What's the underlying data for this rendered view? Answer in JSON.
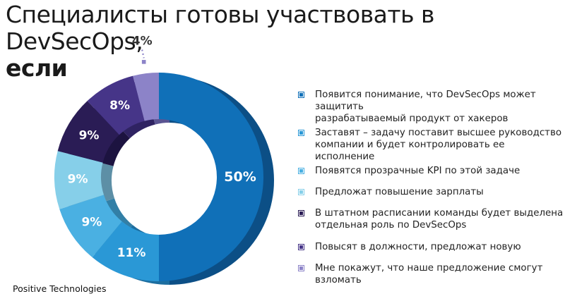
{
  "title": {
    "line1": "Специалисты готовы участвовать в DevSecOps,",
    "line2": "если"
  },
  "footer": "Positive Technologies",
  "chart_data": {
    "type": "pie",
    "title": "Специалисты готовы участвовать в DevSecOps, если",
    "values": [
      50,
      11,
      9,
      9,
      9,
      8,
      4
    ],
    "labels": [
      "50%",
      "11%",
      "9%",
      "9%",
      "9%",
      "8%",
      "4%"
    ],
    "categories": [
      "Появится понимание, что DevSecOps может защитить разрабатываемый продукт от хакеров",
      "Заставят – задачу поставит высшее руководство компании и будет контролировать ее исполнение",
      "Появятся прозрачные KPI по этой задаче",
      "Предложат повышение зарплаты",
      "В штатном расписании команды будет выделена отдельная роль по DevSecOps",
      "Повысят в должности, предложат новую",
      "Мне покажут, что наше предложение смогут взломать"
    ],
    "legend_lines": [
      [
        "Появится понимание, что DevSecOps может защитить",
        "разрабатываемый продукт от хакеров"
      ],
      [
        "Заставят – задачу поставит высшее руководство",
        "компании и будет контролировать ее исполнение"
      ],
      [
        "Появятся прозрачные KPI по этой задаче"
      ],
      [
        "Предложат повышение зарплаты"
      ],
      [
        "В штатном расписании команды будет выделена",
        "отдельная роль по DevSecOps"
      ],
      [
        "Повысят в должности, предложат новую"
      ],
      [
        "Мне покажут, что наше предложение смогут взломать"
      ]
    ],
    "colors": [
      "#1070b8",
      "#2a98d6",
      "#4ab0e2",
      "#86cfe9",
      "#2a1c55",
      "#463588",
      "#8c83c8"
    ],
    "side_colors": [
      "#0c4f86",
      "#1c6ea0",
      "#327fa6",
      "#5d8fa6",
      "#1c1340",
      "#2f2362",
      "#5a5492"
    ],
    "legend_position": "right"
  }
}
